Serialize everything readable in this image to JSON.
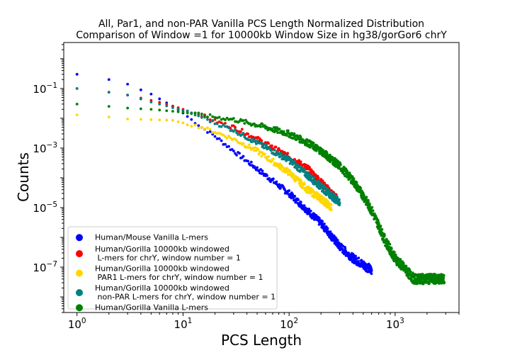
{
  "chart_data": {
    "type": "scatter",
    "title": "All, Par1, and non-PAR Vanilla PCS Length Normalized Distribution",
    "subtitle": "Comparison of Window =1 for 10000kb Window Size in hg38/gorGor6 chrY",
    "xlabel": "PCS Length",
    "ylabel": "Counts",
    "xscale": "log",
    "yscale": "log",
    "xlim": [
      0.75,
      4000
    ],
    "ylim": [
      3e-09,
      3.5
    ],
    "x_ticks": [
      {
        "base": "10",
        "exp": "0"
      },
      {
        "base": "10",
        "exp": "1"
      },
      {
        "base": "10",
        "exp": "2"
      },
      {
        "base": "10",
        "exp": "3"
      }
    ],
    "y_ticks": [
      {
        "base": "10",
        "exp": "−1"
      },
      {
        "base": "10",
        "exp": "−3"
      },
      {
        "base": "10",
        "exp": "−5"
      },
      {
        "base": "10",
        "exp": "−7"
      }
    ],
    "grid": false,
    "legend_position": "lower-left",
    "series": [
      {
        "name": "Human/Mouse Vanilla L-mers",
        "color": "#0000ff",
        "x_max": 600,
        "points": [
          [
            1,
            0.3
          ],
          [
            2,
            0.2
          ],
          [
            3,
            0.14
          ],
          [
            4,
            0.09
          ],
          [
            5,
            0.065
          ],
          [
            6,
            0.045
          ],
          [
            7,
            0.033
          ],
          [
            8,
            0.025
          ],
          [
            10,
            0.015
          ],
          [
            12,
            0.009
          ],
          [
            15,
            0.005
          ],
          [
            20,
            0.0025
          ],
          [
            30,
            0.0008
          ],
          [
            50,
            0.0002
          ],
          [
            100,
            3e-05
          ],
          [
            200,
            3e-06
          ],
          [
            300,
            5e-07
          ],
          [
            400,
            2e-07
          ],
          [
            600,
            8e-08
          ]
        ]
      },
      {
        "name": "Human/Gorilla 10000kb windowed\n L-mers for chrY, window number = 1",
        "color": "#ff0000",
        "x_max": 280,
        "points": [
          [
            1,
            0.1
          ],
          [
            2,
            0.075
          ],
          [
            3,
            0.06
          ],
          [
            5,
            0.04
          ],
          [
            7,
            0.03
          ],
          [
            10,
            0.02
          ],
          [
            15,
            0.013
          ],
          [
            20,
            0.008
          ],
          [
            30,
            0.005
          ],
          [
            50,
            0.002
          ],
          [
            100,
            0.0005
          ],
          [
            150,
            0.0002
          ],
          [
            200,
            7e-05
          ],
          [
            280,
            2e-05
          ]
        ]
      },
      {
        "name": "Human/Gorilla 10000kb windowed\n PAR1 L-mers for chrY, window number = 1",
        "color": "#ffd700",
        "x_max": 250,
        "points": [
          [
            1,
            0.013
          ],
          [
            2,
            0.011
          ],
          [
            3,
            0.0095
          ],
          [
            5,
            0.009
          ],
          [
            8,
            0.0085
          ],
          [
            10,
            0.007
          ],
          [
            15,
            0.005
          ],
          [
            20,
            0.0035
          ],
          [
            30,
            0.002
          ],
          [
            50,
            0.0008
          ],
          [
            100,
            0.00015
          ],
          [
            150,
            4e-05
          ],
          [
            200,
            2e-05
          ],
          [
            250,
            1e-05
          ]
        ]
      },
      {
        "name": "Human/Gorilla 10000kb windowed\n non-PAR L-mers for chrY, window number = 1",
        "color": "#008080",
        "x_max": 300,
        "points": [
          [
            1,
            0.1
          ],
          [
            2,
            0.075
          ],
          [
            3,
            0.06
          ],
          [
            5,
            0.035
          ],
          [
            7,
            0.026
          ],
          [
            10,
            0.018
          ],
          [
            15,
            0.011
          ],
          [
            20,
            0.007
          ],
          [
            30,
            0.004
          ],
          [
            50,
            0.0015
          ],
          [
            100,
            0.0004
          ],
          [
            150,
            0.00012
          ],
          [
            200,
            5e-05
          ],
          [
            300,
            1.5e-05
          ]
        ]
      },
      {
        "name": "Human/Gorilla Vanilla L-mers",
        "color": "#008000",
        "x_max": 2900,
        "points": [
          [
            1,
            0.03
          ],
          [
            2,
            0.025
          ],
          [
            3,
            0.022
          ],
          [
            5,
            0.02
          ],
          [
            10,
            0.016
          ],
          [
            15,
            0.013
          ],
          [
            20,
            0.011
          ],
          [
            30,
            0.009
          ],
          [
            50,
            0.006
          ],
          [
            100,
            0.003
          ],
          [
            150,
            0.0015
          ],
          [
            200,
            0.0008
          ],
          [
            300,
            0.00025
          ],
          [
            400,
            8e-05
          ],
          [
            500,
            2.5e-05
          ],
          [
            600,
            8e-06
          ],
          [
            700,
            2.5e-06
          ],
          [
            800,
            8e-07
          ],
          [
            1000,
            2e-07
          ],
          [
            1500,
            4e-08
          ],
          [
            2900,
            4e-08
          ]
        ]
      }
    ]
  }
}
